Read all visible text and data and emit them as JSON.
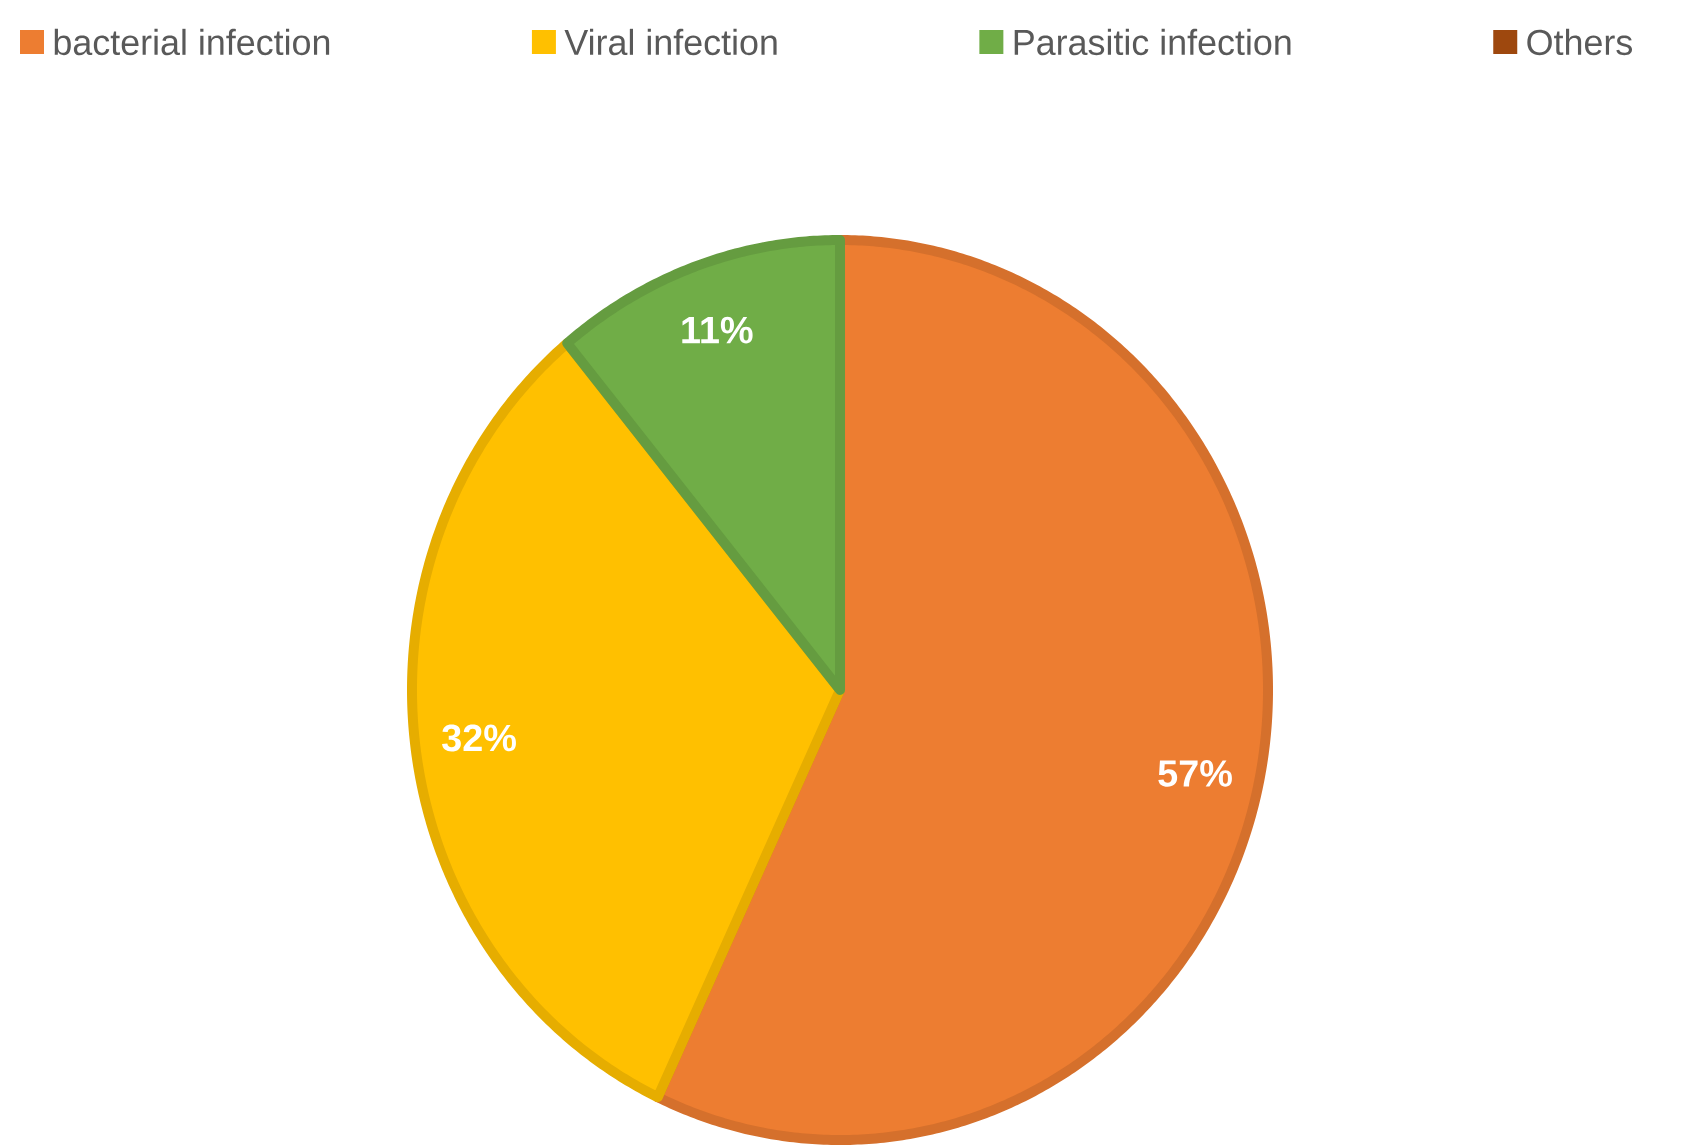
{
  "chart_data": {
    "type": "pie",
    "categories": [
      "bacterial infection",
      "Viral infection",
      "Parasitic infection",
      "Others"
    ],
    "values": [
      57,
      32,
      11,
      0
    ],
    "colors": [
      "#ed7d31",
      "#ffc000",
      "#70ad47",
      "#9e480e"
    ],
    "value_labels": [
      "57%",
      "32%",
      "11%",
      null
    ],
    "legend": "top"
  }
}
